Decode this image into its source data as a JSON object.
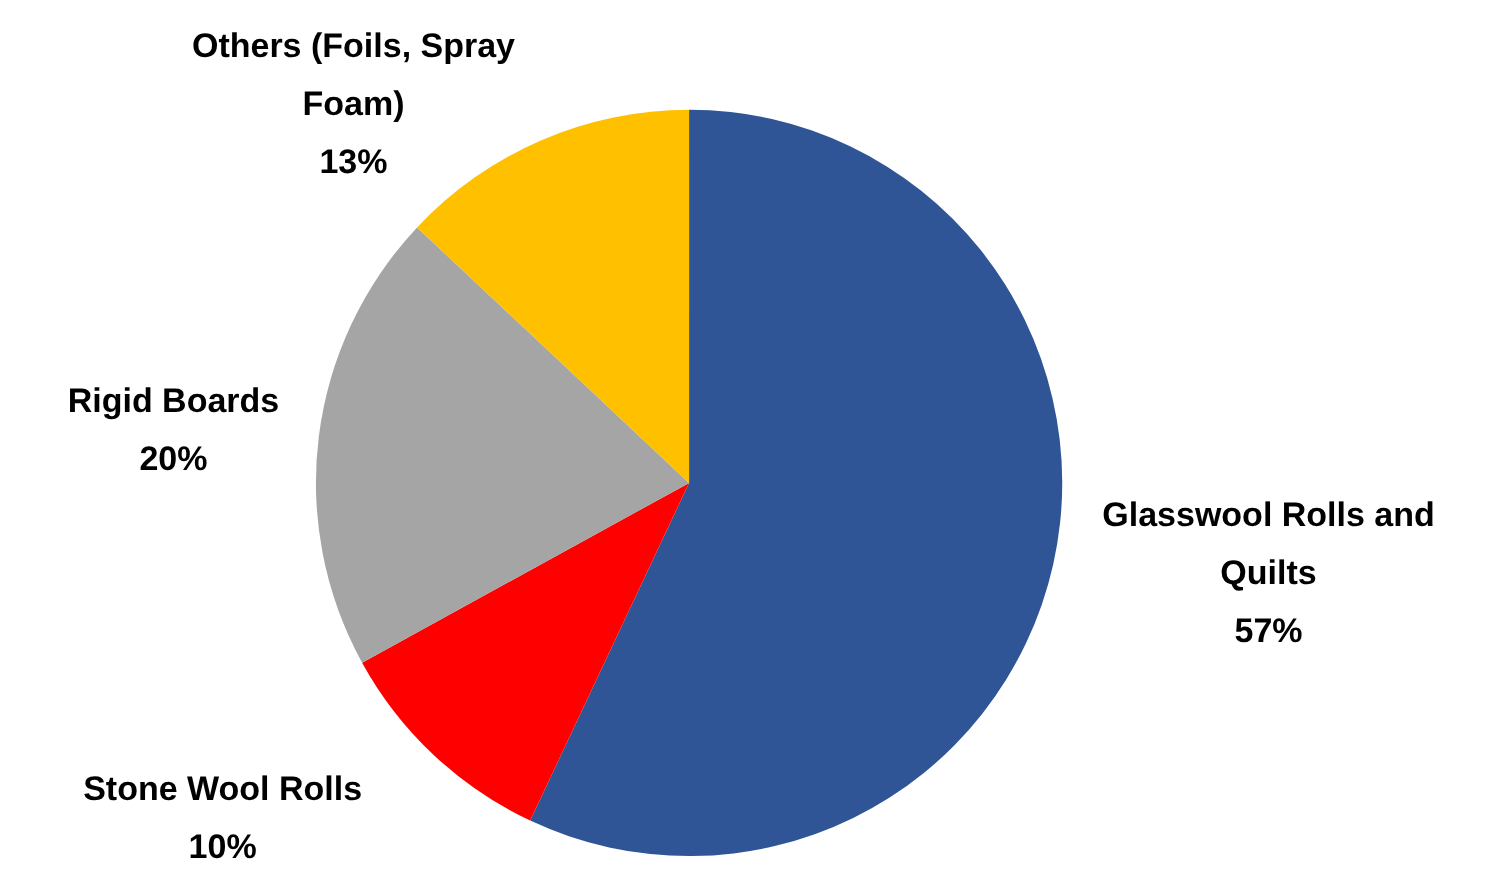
{
  "chart_data": {
    "type": "pie",
    "categories": [
      "Glasswool Rolls and Quilts",
      "Stone Wool Rolls",
      "Rigid Boards",
      "Others (Foils, Spray Foam)"
    ],
    "values": [
      57,
      10,
      20,
      13
    ],
    "colors": [
      "#2f5597",
      "#ff0000",
      "#a5a5a5",
      "#ffc000"
    ],
    "value_labels": [
      "57%",
      "10%",
      "20%",
      "13%"
    ]
  }
}
